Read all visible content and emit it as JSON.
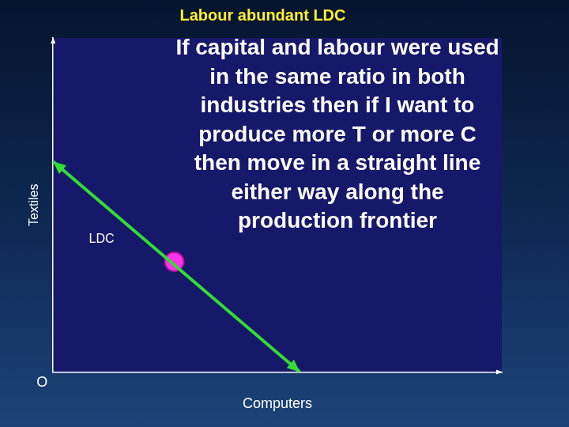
{
  "chart_data": {
    "type": "line",
    "title": "Labour abundant LDC",
    "xlabel": "Computers",
    "ylabel": "Textiles",
    "origin_label": "O",
    "xlim": [
      0,
      10
    ],
    "ylim": [
      0,
      10
    ],
    "tick_labels": false,
    "grid": false,
    "x": [
      0,
      5.5
    ],
    "values": [
      6.3,
      0
    ],
    "color": "#33dd33",
    "line_style": "solid",
    "marker": "arrow",
    "points": [
      {
        "label": "LDC",
        "x": 2.7,
        "y": 3.3,
        "color": "#ff33ee"
      }
    ],
    "annotations": [
      "If capital and labour were used in the same ratio in both industries then if I want to produce more T or more C then move in a straight line either way along the production frontier"
    ]
  }
}
